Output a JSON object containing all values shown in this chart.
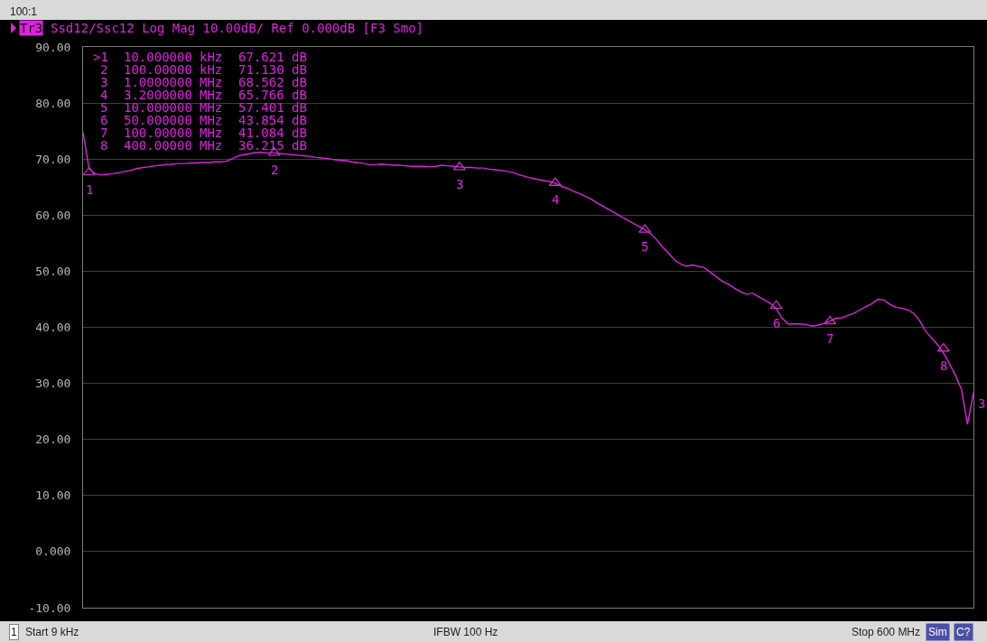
{
  "chart_data": {
    "type": "line",
    "title": "Tr3 Ssd12/Ssc12 Log Mag 10.00dB/ Ref 0.000dB [F3 Smo]",
    "annotations": [
      "100:1",
      "1",
      "Start 9 kHz",
      "IFBW 100 Hz",
      "Stop 600 MHz",
      "Sim",
      "C?",
      ">1  10.000000 kHz  67.621 dB",
      " 2  100.00000 kHz  71.130 dB",
      " 3  1.0000000 MHz  68.562 dB",
      " 4  3.2000000 MHz  65.766 dB",
      " 5  10.000000 MHz  57.401 dB",
      " 6  50.000000 MHz  43.854 dB",
      " 7  100.00000 MHz  41.084 dB",
      " 8  400.00000 MHz  36.215 dB",
      {
        "text": "1",
        "y": 67.621
      },
      {
        "text": "2",
        "y": 71.13
      },
      {
        "text": "3",
        "y": 68.562
      },
      {
        "text": "4",
        "y": 65.766
      },
      {
        "text": "5",
        "y": 57.401
      },
      {
        "text": "6",
        "y": 43.854
      },
      {
        "text": "7",
        "y": 41.084
      },
      {
        "text": "8",
        "y": 36.215
      }
    ],
    "categories": [
      null,
      null,
      null,
      null,
      null,
      null,
      null,
      null,
      null,
      null,
      null,
      null,
      null,
      null,
      null,
      null,
      null,
      null,
      null,
      null,
      null,
      null,
      null,
      null,
      null,
      null,
      null,
      null,
      null,
      null,
      null,
      null,
      null,
      null,
      null,
      null,
      null,
      null,
      null,
      null,
      null,
      null,
      null,
      null,
      null,
      null,
      null,
      null,
      null,
      null,
      null,
      null,
      null,
      null,
      null,
      null,
      null,
      null,
      null,
      null,
      null,
      null,
      null,
      null,
      null,
      null,
      null,
      null,
      null,
      null,
      null,
      null,
      null,
      null,
      null,
      null,
      null,
      null,
      null,
      null,
      null,
      null,
      null,
      null,
      null,
      null,
      null,
      null,
      null,
      null,
      null,
      null,
      null,
      null,
      null,
      null,
      null,
      null,
      null,
      null,
      null,
      null,
      null,
      null,
      null,
      null,
      null,
      null,
      null,
      null,
      null,
      null,
      null,
      null,
      null,
      null,
      null,
      null,
      null,
      null,
      null,
      null,
      null,
      null,
      null,
      null,
      null,
      null,
      null,
      null,
      null,
      null,
      null,
      null,
      null,
      null,
      null,
      null,
      null,
      null,
      null,
      null,
      null,
      null,
      null,
      null,
      null,
      null,
      null,
      null
    ],
    "ylim": [
      -10,
      90
    ],
    "yticks": [
      {
        "value": 90,
        "label": "90.00"
      },
      {
        "value": 80,
        "label": "80.00"
      },
      {
        "value": 70,
        "label": "70.00"
      },
      {
        "value": 60,
        "label": "60.00"
      },
      {
        "value": 50,
        "label": "50.00"
      },
      {
        "value": 40,
        "label": "40.00"
      },
      {
        "value": 30,
        "label": "30.00"
      },
      {
        "value": 20,
        "label": "20.00"
      },
      {
        "value": 10,
        "label": "10.00"
      },
      {
        "value": 0,
        "label": "0.000"
      },
      {
        "value": -10,
        "label": "-10.00"
      }
    ],
    "tick_labels": "y",
    "grid": "y",
    "legend": false,
    "line_style": "solid",
    "series": [
      {
        "name": "3",
        "color": "#e020e0",
        "values": [
          74.8,
          68.3,
          67.4,
          67.2,
          67.3,
          67.4,
          67.6,
          67.8,
          68.0,
          68.3,
          68.5,
          68.6,
          68.8,
          68.9,
          69.0,
          69.1,
          69.2,
          69.2,
          69.3,
          69.3,
          69.4,
          69.4,
          69.5,
          69.5,
          69.6,
          70.1,
          70.6,
          70.8,
          71.0,
          71.2,
          71.2,
          71.1,
          71.1,
          71.0,
          70.9,
          70.8,
          70.7,
          70.6,
          70.5,
          70.3,
          70.2,
          70.1,
          69.9,
          69.8,
          69.7,
          69.5,
          69.4,
          69.2,
          69.0,
          69.0,
          69.1,
          69.0,
          68.9,
          68.9,
          68.8,
          68.7,
          68.7,
          68.7,
          68.6,
          68.7,
          68.9,
          68.8,
          68.7,
          68.6,
          68.5,
          68.5,
          68.4,
          68.4,
          68.2,
          68.1,
          68.0,
          67.8,
          67.6,
          67.2,
          66.9,
          66.6,
          66.4,
          66.2,
          66.0,
          65.7,
          65.2,
          64.8,
          64.3,
          63.9,
          63.4,
          62.9,
          62.2,
          61.6,
          61.0,
          60.4,
          59.8,
          59.2,
          58.6,
          58.0,
          57.4,
          56.7,
          55.6,
          54.3,
          53.2,
          52.0,
          51.3,
          50.9,
          51.1,
          50.9,
          50.6,
          49.8,
          49.0,
          48.2,
          47.7,
          47.0,
          46.4,
          45.9,
          46.1,
          45.5,
          44.9,
          44.3,
          43.3,
          41.6,
          40.6,
          40.6,
          40.6,
          40.5,
          40.2,
          40.4,
          40.7,
          41.1,
          41.6,
          41.7,
          42.1,
          42.5,
          43.1,
          43.7,
          44.2,
          45.0,
          44.9,
          44.1,
          43.6,
          43.4,
          43.1,
          42.5,
          41.2,
          39.3,
          38.1,
          36.9,
          35.4,
          33.5,
          31.4,
          28.9,
          22.7,
          28.3
        ]
      },
      {
        "type": "scatter",
        "marker": "triangle",
        "color": "#c030c0",
        "values": [
          null,
          67.621,
          null,
          null,
          null,
          null,
          null,
          null,
          null,
          null,
          null,
          null,
          null,
          null,
          null,
          null,
          null,
          null,
          null,
          null,
          null,
          null,
          null,
          null,
          null,
          null,
          null,
          null,
          null,
          null,
          null,
          null,
          71.13,
          null,
          null,
          null,
          null,
          null,
          null,
          null,
          null,
          null,
          null,
          null,
          null,
          null,
          null,
          null,
          null,
          null,
          null,
          null,
          null,
          null,
          null,
          null,
          null,
          null,
          null,
          null,
          null,
          null,
          null,
          68.562,
          null,
          null,
          null,
          null,
          null,
          null,
          null,
          null,
          null,
          null,
          null,
          null,
          null,
          null,
          null,
          65.766,
          null,
          null,
          null,
          null,
          null,
          null,
          null,
          null,
          null,
          null,
          null,
          null,
          null,
          null,
          57.401,
          null,
          null,
          null,
          null,
          null,
          null,
          null,
          null,
          null,
          null,
          null,
          null,
          null,
          null,
          null,
          null,
          null,
          null,
          null,
          null,
          null,
          43.854,
          null,
          null,
          null,
          null,
          null,
          null,
          null,
          null,
          41.084,
          null,
          null,
          null,
          null,
          null,
          null,
          null,
          null,
          null,
          null,
          null,
          null,
          null,
          null,
          null,
          null,
          null,
          null,
          36.215,
          null,
          null,
          null,
          null,
          null
        ]
      }
    ]
  }
}
